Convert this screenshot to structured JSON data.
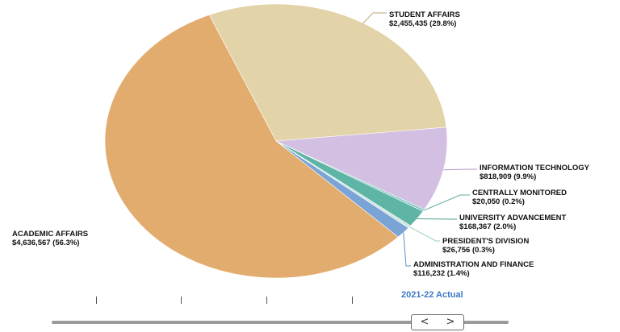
{
  "chart_data": {
    "type": "pie",
    "slices": [
      {
        "name": "STUDENT AFFAIRS",
        "value_label": "$2,455,435 (29.8%)",
        "value": 2455435,
        "percent": 29.8,
        "color": "#e3d3a8"
      },
      {
        "name": "INFORMATION TECHNOLOGY",
        "value_label": "$818,909 (9.9%)",
        "value": 818909,
        "percent": 9.9,
        "color": "#d2bfe2"
      },
      {
        "name": "CENTRALLY MONITORED",
        "value_label": "$20,050 (0.2%)",
        "value": 20050,
        "percent": 0.2,
        "color": "#7ec8bd"
      },
      {
        "name": "UNIVERSITY ADVANCEMENT",
        "value_label": "$168,367 (2.0%)",
        "value": 168367,
        "percent": 2.0,
        "color": "#5fb5a5"
      },
      {
        "name": "PRESIDENT'S DIVISION",
        "value_label": "$26,756 (0.3%)",
        "value": 26756,
        "percent": 0.3,
        "color": "#cfe6e0"
      },
      {
        "name": "ADMINISTRATION AND FINANCE",
        "value_label": "$116,232 (1.4%)",
        "value": 116232,
        "percent": 1.4,
        "color": "#7aa3d6"
      },
      {
        "name": "ACADEMIC AFFAIRS",
        "value_label": "$4,636,567 (56.3%)",
        "value": 4636567,
        "percent": 56.3,
        "color": "#e2ac6f"
      }
    ]
  },
  "timeline": {
    "current_label": "2021-22 Actual",
    "prev_symbol": "<",
    "next_symbol": ">"
  }
}
